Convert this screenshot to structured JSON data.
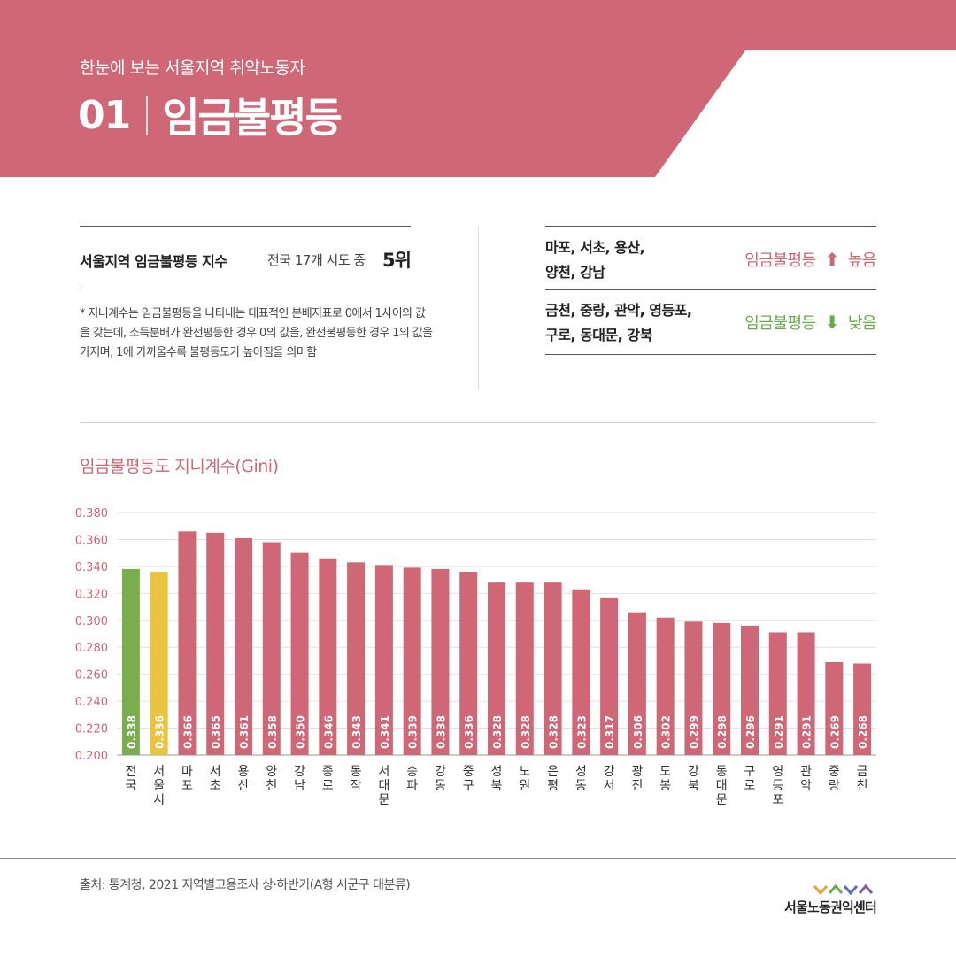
{
  "header": {
    "subtitle": "한눈에 보는 서울지역 취약노동자",
    "number": "01",
    "title": "임금불평등"
  },
  "summary": {
    "index_label": "서울지역 임금불평등 지수",
    "rank_prefix": "전국 17개 시도 중",
    "rank": "5위",
    "note": "* 지니계수는 임금불평등을 나타내는 대표적인 분배지표로 0에서 1사이의 값을 갖는데, 소득분배가 완전평등한 경우 0의 값을, 완전불평등한 경우 1의 값을 가지며, 1에 가까울수록 불평등도가 높아짐을 의미함"
  },
  "regions": {
    "high": {
      "line1": "마포, 서초, 용산,",
      "line2": "양천, 강남",
      "label_prefix": "임금불평등",
      "arrow": "⬆",
      "label_suffix": "높음"
    },
    "low": {
      "line1": "금천, 중랑, 관악, 영등포,",
      "line2": "구로, 동대문, 강북",
      "label_prefix": "임금불평등",
      "arrow": "⬇",
      "label_suffix": "낮음"
    }
  },
  "chart_data": {
    "type": "bar",
    "title": "임금불평등도 지니계수(Gini)",
    "categories": [
      "전국",
      "서울시",
      "마포",
      "서초",
      "용산",
      "양천",
      "강남",
      "종로",
      "동작",
      "서대문",
      "송파",
      "강동",
      "중구",
      "성북",
      "노원",
      "은평",
      "성동",
      "강서",
      "광진",
      "도봉",
      "강북",
      "동대문",
      "구로",
      "영등포",
      "관악",
      "중랑",
      "금천"
    ],
    "values": [
      0.338,
      0.336,
      0.366,
      0.365,
      0.361,
      0.358,
      0.35,
      0.346,
      0.343,
      0.341,
      0.339,
      0.338,
      0.336,
      0.328,
      0.328,
      0.328,
      0.323,
      0.317,
      0.306,
      0.302,
      0.299,
      0.298,
      0.296,
      0.291,
      0.291,
      0.269,
      0.268
    ],
    "value_labels": [
      "0.338",
      "0.336",
      "0.366",
      "0.365",
      "0.361",
      "0.358",
      "0.350",
      "0.346",
      "0.343",
      "0.341",
      "0.339",
      "0.338",
      "0.336",
      "0.328",
      "0.328",
      "0.328",
      "0.323",
      "0.317",
      "0.306",
      "0.302",
      "0.299",
      "0.298",
      "0.296",
      "0.291",
      "0.291",
      "0.269",
      "0.268"
    ],
    "yticks": [
      "0.200",
      "0.220",
      "0.240",
      "0.260",
      "0.280",
      "0.300",
      "0.320",
      "0.340",
      "0.360",
      "0.380"
    ],
    "ylim": [
      0.2,
      0.38
    ],
    "grid": true,
    "colors": {
      "default": "#cf6777",
      "national": "#7aad4e",
      "seoul": "#eac441",
      "axis_text": "#cf6777",
      "grid": "#e2e2e2"
    },
    "highlight": {
      "전국": "national",
      "서울시": "seoul"
    }
  },
  "footer": {
    "source": "출처: 통계청, 2021 지역별고용조사 상·하반기(A형 시군구 대분류)",
    "logo_text": "서울노동권익센터"
  },
  "colors": {
    "header_band": "#cf6777",
    "header_accent": "#ffffff",
    "logo_chevrons": [
      "#e8a33a",
      "#6cab4b",
      "#5b6fb8",
      "#8a5aa8"
    ]
  }
}
